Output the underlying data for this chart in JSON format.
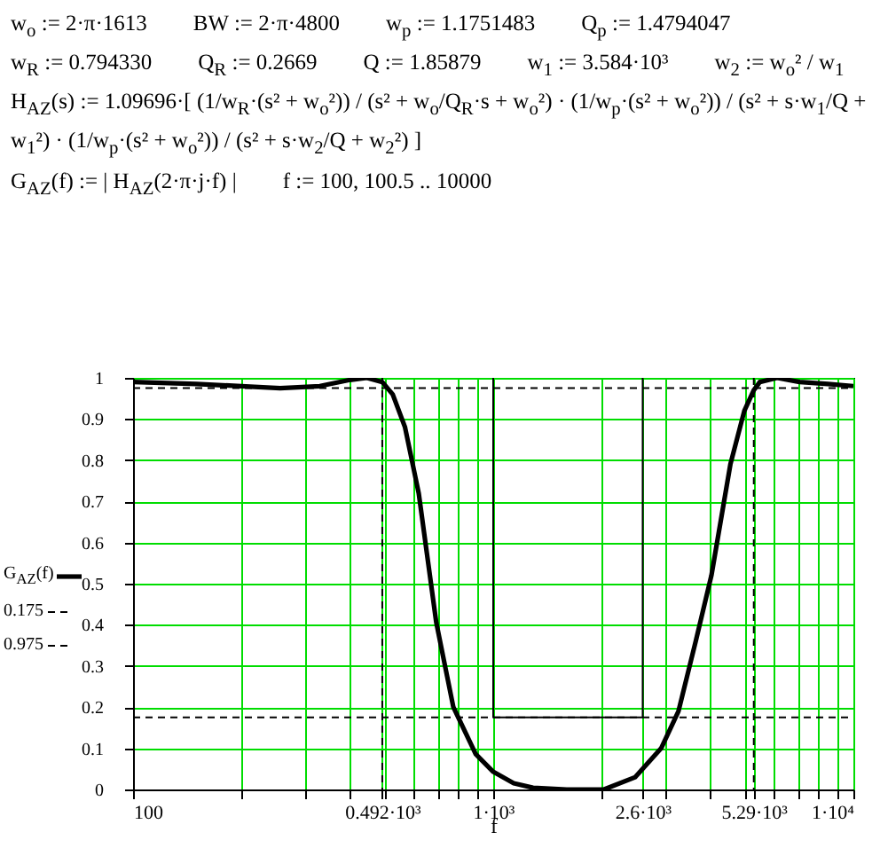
{
  "chart_data": {
    "type": "line",
    "annotations": [
      "w$_{o}$ := 2·π·1613",
      "BW := 2·π·4800",
      "w$_{p}$ := 1.1751483",
      "Q$_{p}$ := 1.4794047",
      "w$_{R}$ := 0.794330",
      "Q$_{R}$ := 0.2669",
      "Q := 1.85879",
      "w$_{1}$ := 3.584·10³",
      "w$_{2}$ := w$_{o}$² / w$_{1}$",
      "H$_{AZ}$(s) := 1.09696·[ (1/w$_{R}$·(s² + w$_{o}$²)) / (s² + w$_{o}$/Q$_{R}$·s + w$_{o}$²) · (1/w$_{p}$·(s² + w$_{o}$²)) / (s² + s·w$_{1}$/Q + w$_{1}$²) · (1/w$_{p}$·(s² + w$_{o}$²)) / (s² + s·w$_{2}$/Q + w$_{2}$²) ]",
      "G$_{AZ}$(f) := | H$_{AZ}$(2·π·j·f) |",
      "f := 100, 100.5 .. 10000"
    ],
    "xlabel": "f",
    "log": "x",
    "grid": true,
    "legend": "left",
    "xlim": [
      100,
      10000
    ],
    "xticks": [
      100,
      {
        "value": 200,
        "label": null
      },
      {
        "value": 300,
        "label": null
      },
      {
        "value": 400,
        "label": null
      },
      {
        "value": 492,
        "label": "0.492·10³"
      },
      {
        "value": 500,
        "label": null
      },
      {
        "value": 600,
        "label": null
      },
      {
        "value": 700,
        "label": null
      },
      {
        "value": 800,
        "label": null
      },
      {
        "value": 900,
        "label": null
      },
      {
        "value": 1000,
        "label": "1·10³"
      },
      {
        "value": 2000,
        "label": null
      },
      {
        "value": 2600,
        "label": "2.6·10³"
      },
      {
        "value": 3000,
        "label": null
      },
      {
        "value": 4000,
        "label": null
      },
      {
        "value": 5000,
        "label": null
      },
      {
        "value": 5290,
        "label": "5.29·10³"
      },
      {
        "value": 6000,
        "label": null
      },
      {
        "value": 7000,
        "label": null
      },
      {
        "value": 8000,
        "label": null
      },
      {
        "value": 9000,
        "label": null
      },
      {
        "value": 10000,
        "label": "1·10⁴"
      }
    ],
    "ylim": [
      0,
      1
    ],
    "yticks": [
      0,
      0.1,
      0.2,
      0.3,
      0.4,
      0.5,
      0.6,
      0.7,
      0.8,
      0.9,
      1
    ],
    "ref_lines": [
      {
        "axis": "x",
        "value": 492,
        "line_style": "dashed",
        "color": "#000000"
      },
      {
        "axis": "x",
        "value": 5290,
        "line_style": "dashed",
        "color": "#000000"
      }
    ],
    "series": [
      {
        "name": "G$_{AZ}$(f)",
        "color": "#000000",
        "line_style": "solid",
        "x": [
          100,
          150,
          200,
          256,
          330,
          400,
          446,
          492,
          526,
          569,
          621,
          695,
          775,
          894,
          1000,
          1140,
          1290,
          1600,
          2030,
          2480,
          2926,
          3268,
          3650,
          4035,
          4555,
          4980,
          5290,
          5500,
          6140,
          7090,
          8500,
          10000
        ],
        "values": [
          0.99,
          0.985,
          0.98,
          0.975,
          0.98,
          0.995,
          1.0,
          0.99,
          0.96,
          0.88,
          0.72,
          0.405,
          0.2,
          0.086,
          0.043,
          0.015,
          0.004,
          0,
          0,
          0.03,
          0.1,
          0.19,
          0.36,
          0.52,
          0.79,
          0.92,
          0.97,
          0.99,
          1.0,
          0.99,
          0.985,
          0.98
        ]
      },
      {
        "name": "0.175",
        "color": "#000000",
        "line_style": "dashed",
        "x": [
          100,
          10000
        ],
        "values": [
          0.175,
          0.175
        ]
      },
      {
        "name": "0.975",
        "color": "#000000",
        "line_style": "dashed",
        "x": [
          100,
          10000
        ],
        "values": [
          0.975,
          0.975
        ]
      },
      {
        "color": "#000000",
        "line_style": "solid",
        "x": [
          1000,
          1000,
          2600,
          2600
        ],
        "values": [
          1,
          0.175,
          0.175,
          1
        ]
      }
    ]
  }
}
